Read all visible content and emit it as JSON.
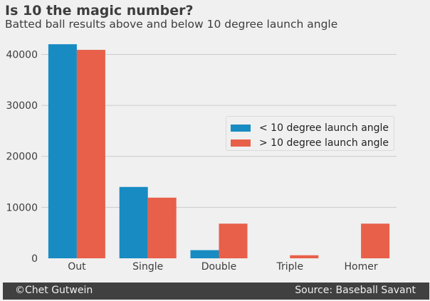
{
  "chart_data": {
    "type": "bar",
    "title": "Is 10 the magic number?",
    "subtitle": "Batted ball results above and below 10 degree launch angle",
    "categories": [
      "Out",
      "Single",
      "Double",
      "Triple",
      "Homer"
    ],
    "series": [
      {
        "name": "< 10 degree launch angle",
        "values": [
          42000,
          14000,
          1600,
          0,
          0
        ],
        "color": "#188bc2"
      },
      {
        "name": "> 10 degree launch angle",
        "values": [
          40900,
          11900,
          6800,
          600,
          6800
        ],
        "color": "#e8604a"
      }
    ],
    "ylim": [
      0,
      43000
    ],
    "yticks": [
      "0",
      "10000",
      "20000",
      "30000",
      "40000"
    ],
    "ytick_values": [
      0,
      10000,
      20000,
      30000,
      40000
    ],
    "xlabel": "",
    "ylabel": "",
    "grid": true,
    "legend_position": "center-right"
  },
  "footer": {
    "left": "©Chet Gutwein",
    "right": "Source: Baseball Savant"
  }
}
